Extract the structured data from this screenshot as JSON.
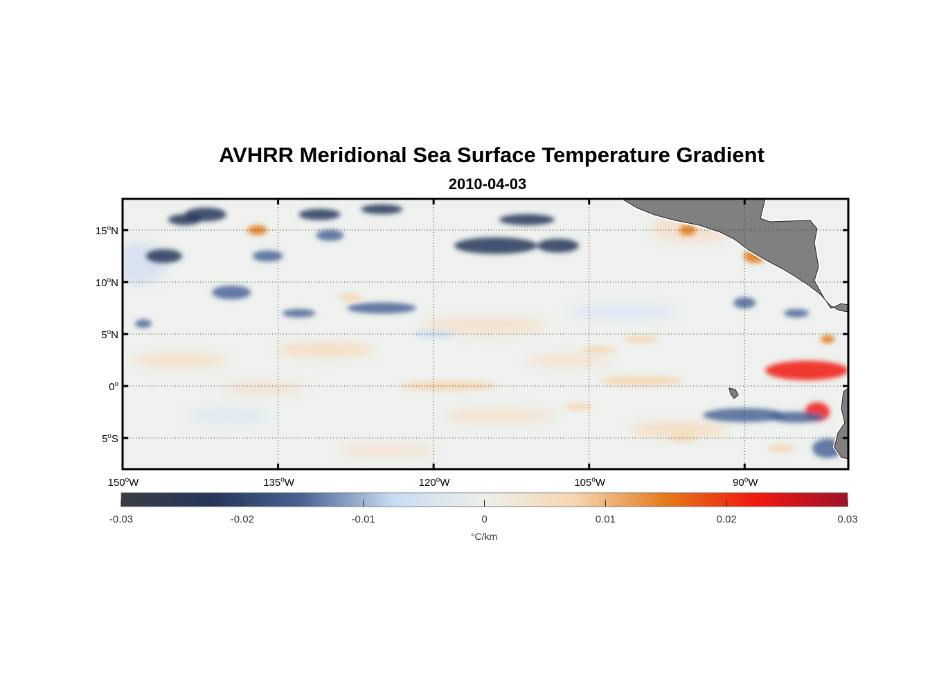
{
  "title": "AVHRR Meridional Sea Surface Temperature Gradient",
  "subtitle": "2010-04-03",
  "map": {
    "lon_range": [
      -150,
      -80
    ],
    "lat_range": [
      -8,
      18
    ],
    "lon_ticks": [
      {
        "value": -150,
        "num": "150",
        "hemi": "W"
      },
      {
        "value": -135,
        "num": "135",
        "hemi": "W"
      },
      {
        "value": -120,
        "num": "120",
        "hemi": "W"
      },
      {
        "value": -105,
        "num": "105",
        "hemi": "W"
      },
      {
        "value": -90,
        "num": "90",
        "hemi": "W"
      }
    ],
    "lat_ticks": [
      {
        "value": 15,
        "num": "15",
        "hemi": "N"
      },
      {
        "value": 10,
        "num": "10",
        "hemi": "N"
      },
      {
        "value": 5,
        "num": "5",
        "hemi": "N"
      },
      {
        "value": 0,
        "num": "0",
        "hemi": ""
      },
      {
        "value": -5,
        "num": "5",
        "hemi": "S"
      }
    ],
    "grid": "dotted",
    "land_color": "#808080"
  },
  "colorbar": {
    "min": -0.03,
    "max": 0.03,
    "ticks": [
      "-0.03",
      "-0.02",
      "-0.01",
      "0",
      "0.01",
      "0.02",
      "0.03"
    ],
    "tick_values": [
      -0.03,
      -0.02,
      -0.01,
      0,
      0.01,
      0.02,
      0.03
    ],
    "unit": "°C/km",
    "colors": [
      "#3a3d44",
      "#263659",
      "#4a6496",
      "#c9dcf2",
      "#ecefea",
      "#f6d6b0",
      "#e37a1a",
      "#f01810",
      "#a0122c"
    ]
  },
  "features": [
    {
      "lon": -118.5,
      "lat": 0,
      "value": 0.01,
      "kind": "positive"
    },
    {
      "lon": -100,
      "lat": 0.5,
      "value": 0.01,
      "kind": "positive"
    },
    {
      "lon": -84,
      "lat": 1.5,
      "value": 0.022,
      "kind": "positive"
    },
    {
      "lon": -83,
      "lat": -2.5,
      "value": 0.02,
      "kind": "positive"
    },
    {
      "lon": -137,
      "lat": 15,
      "value": 0.012,
      "kind": "positive"
    },
    {
      "lon": -95.5,
      "lat": 15,
      "value": 0.018,
      "kind": "positive"
    },
    {
      "lon": -89,
      "lat": 12.5,
      "value": 0.012,
      "kind": "positive"
    },
    {
      "lon": -90,
      "lat": -2.8,
      "value": -0.018,
      "kind": "negative"
    },
    {
      "lon": -114,
      "lat": 13.5,
      "value": -0.02,
      "kind": "negative"
    },
    {
      "lon": -142,
      "lat": 16.5,
      "value": -0.02,
      "kind": "negative"
    },
    {
      "lon": -146,
      "lat": 12.5,
      "value": -0.02,
      "kind": "negative"
    },
    {
      "lon": -139.5,
      "lat": 9,
      "value": -0.015,
      "kind": "negative"
    },
    {
      "lon": -125,
      "lat": 7.5,
      "value": -0.012,
      "kind": "negative"
    },
    {
      "lon": -82,
      "lat": -6,
      "value": -0.018,
      "kind": "negative"
    }
  ]
}
